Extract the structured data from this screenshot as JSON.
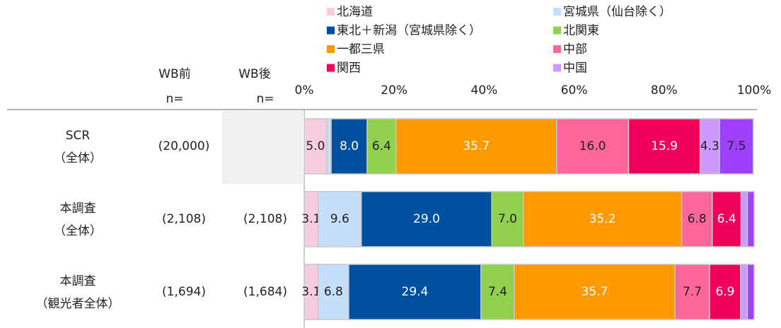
{
  "chart_data": {
    "type": "stacked-bar-horizontal",
    "headers": {
      "wb_before": [
        "WB前",
        "n="
      ],
      "wb_after": [
        "WB後",
        "n="
      ]
    },
    "categories": [
      [
        "SCR",
        "（全体）"
      ],
      [
        "本調査",
        "（全体）"
      ],
      [
        "本調査",
        "（観光者全体）"
      ]
    ],
    "n_before": [
      "(20,000)",
      "(2,108)",
      "(1,694)"
    ],
    "n_after": [
      null,
      "(2,108)",
      "(1,684)"
    ],
    "xlim": [
      0,
      100
    ],
    "xticks": [
      {
        "value": 0,
        "label": "0%"
      },
      {
        "value": 20,
        "label": "20%"
      },
      {
        "value": 40,
        "label": "40%"
      },
      {
        "value": 60,
        "label": "60%"
      },
      {
        "value": 80,
        "label": "80%"
      },
      {
        "value": 100,
        "label": "100%"
      }
    ],
    "series": [
      {
        "name": "北海道",
        "color": "#f9cde0",
        "values": [
          5.0,
          3.1,
          3.1
        ],
        "value_labels": [
          "5.0",
          "3.1",
          "3.1"
        ]
      },
      {
        "name": "宮城県（仙台除く）",
        "color": "#c5defa",
        "values": [
          1.0,
          9.6,
          6.8
        ],
        "value_labels": [
          null,
          "9.6",
          "6.8"
        ]
      },
      {
        "name": "東北＋新潟（宮城県除く）",
        "color": "#0050a0",
        "values": [
          8.0,
          29.0,
          29.4
        ],
        "value_labels": [
          "8.0",
          "29.0",
          "29.4"
        ]
      },
      {
        "name": "北関東",
        "color": "#92d050",
        "values": [
          6.4,
          7.0,
          7.4
        ],
        "value_labels": [
          "6.4",
          "7.0",
          "7.4"
        ]
      },
      {
        "name": "一都三県",
        "color": "#ff9900",
        "values": [
          35.7,
          35.2,
          35.7
        ],
        "value_labels": [
          "35.7",
          "35.2",
          "35.7"
        ]
      },
      {
        "name": "中部",
        "color": "#ff6699",
        "values": [
          16.0,
          6.8,
          7.7
        ],
        "value_labels": [
          "16.0",
          "6.8",
          "7.7"
        ]
      },
      {
        "name": "関西",
        "color": "#f0005a",
        "values": [
          15.9,
          6.4,
          6.9
        ],
        "value_labels": [
          "15.9",
          "6.4",
          "6.9"
        ]
      },
      {
        "name": "中国",
        "color": "#cc99ff",
        "values": [
          4.3,
          1.4,
          1.5
        ],
        "value_labels": [
          "4.3",
          null,
          null
        ]
      },
      {
        "color": "#a040ff",
        "values": [
          7.5,
          1.5,
          1.5
        ],
        "value_labels": [
          "7.5",
          null,
          null
        ]
      }
    ]
  }
}
